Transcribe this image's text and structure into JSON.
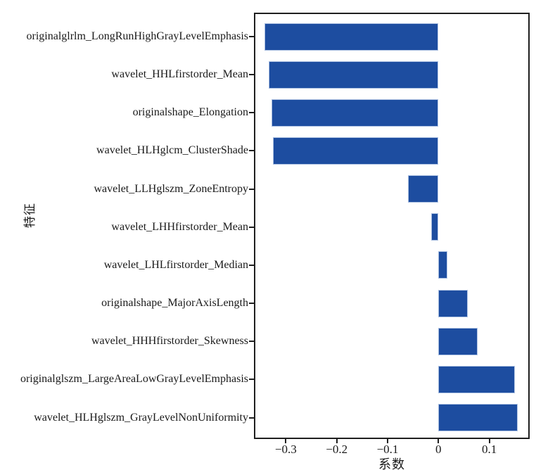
{
  "chart_data": {
    "type": "bar",
    "orientation": "horizontal",
    "title": "",
    "xlabel": "系数",
    "ylabel": "特征",
    "categories": [
      "originalglrlm_LongRunHighGrayLevelEmphasis",
      "wavelet_HHLfirstorder_Mean",
      "originalshape_Elongation",
      "wavelet_HLHglcm_ClusterShade",
      "wavelet_LLHglszm_ZoneEntropy",
      "wavelet_LHHfirstorder_Mean",
      "wavelet_LHLfirstorder_Median",
      "originalshape_MajorAxisLength",
      "wavelet_HHHfirstorder_Skewness",
      "originalglszm_LargeAreaLowGrayLevelEmphasis",
      "wavelet_HLHglszm_GrayLevelNonUniformity"
    ],
    "values": [
      -0.342,
      -0.334,
      -0.328,
      -0.325,
      -0.06,
      -0.015,
      0.018,
      0.058,
      0.077,
      0.15,
      0.156
    ],
    "xlim": [
      -0.3627,
      0.1793
    ],
    "xticks": [
      -0.3,
      -0.2,
      -0.1,
      0,
      0.1
    ],
    "xtick_labels": [
      "−0.3",
      "−0.2",
      "−0.1",
      "0",
      "0.1"
    ],
    "grid": false,
    "legend": null,
    "bar_color": "#1d4da0",
    "bar_edge_color": "#aec2e2",
    "axis_color": "#1f1f1f",
    "text_color": "#1a1a1a"
  }
}
